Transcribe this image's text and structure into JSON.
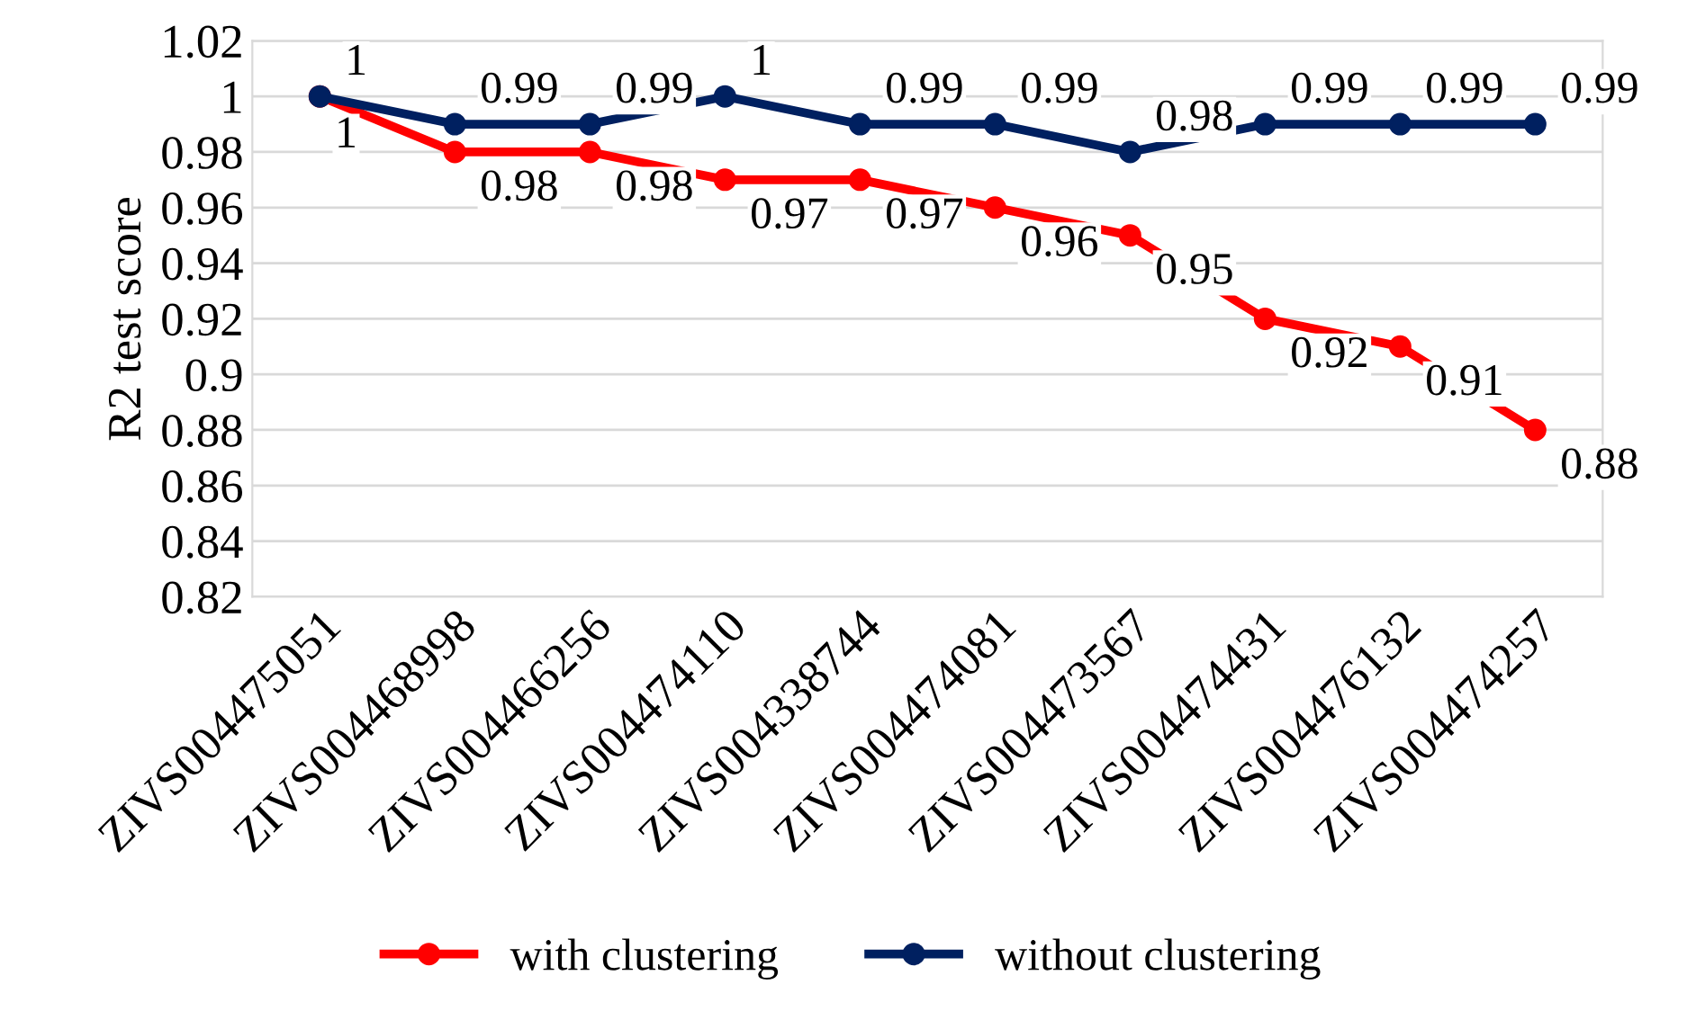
{
  "chart_data": {
    "type": "line",
    "ylabel": "R2 test score",
    "categories": [
      "ZIVS004475051",
      "ZIVS004468998",
      "ZIVS004466256",
      "ZIVS004474110",
      "ZIVS004338744",
      "ZIVS004474081",
      "ZIVS004473567",
      "ZIVS004474431",
      "ZIVS004476132",
      "ZIVS004474257"
    ],
    "series": [
      {
        "name": "with clustering",
        "color": "#ff0000",
        "values": [
          1,
          0.98,
          0.98,
          0.97,
          0.97,
          0.96,
          0.95,
          0.92,
          0.91,
          0.88
        ]
      },
      {
        "name": "without clustering",
        "color": "#002060",
        "values": [
          1,
          0.99,
          0.99,
          1,
          0.99,
          0.99,
          0.98,
          0.99,
          0.99,
          0.99
        ]
      }
    ],
    "ylim": [
      0.82,
      1.02
    ],
    "yticks": [
      0.82,
      0.84,
      0.86,
      0.88,
      0.9,
      0.92,
      0.94,
      0.96,
      0.98,
      1,
      1.02
    ],
    "grid": "y",
    "legend": "bottom",
    "marker": "circle",
    "line_style": "solid",
    "data_labels": true
  }
}
